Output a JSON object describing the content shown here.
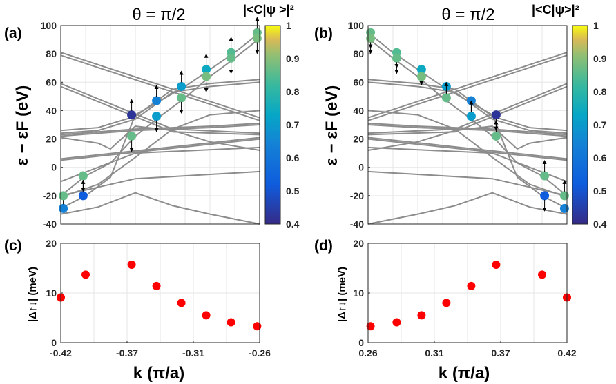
{
  "chart_data": [
    {
      "panel": "(a)",
      "type": "line",
      "title": "θ = π/2",
      "ylabel": "ε − εF (eV)",
      "ylim": [
        -40,
        100
      ],
      "xlim": [
        -0.42,
        -0.26
      ],
      "yticks": [
        "100",
        "80",
        "60",
        "40",
        "20",
        "0",
        "-20",
        "-40"
      ],
      "grid": true,
      "colorbar": {
        "label": "|<C|ψ >|²",
        "range": [
          0.4,
          1
        ],
        "ticks": [
          "1",
          "0.9",
          "0.8",
          "0.7",
          "0.6",
          "0.5",
          "0.4"
        ]
      },
      "bands": [
        [
          [
            -0.42,
            81
          ],
          [
            -0.26,
            35
          ]
        ],
        [
          [
            -0.42,
            79
          ],
          [
            -0.26,
            33
          ]
        ],
        [
          [
            -0.42,
            59
          ],
          [
            -0.33,
            27
          ],
          [
            -0.26,
            24
          ]
        ],
        [
          [
            -0.42,
            57
          ],
          [
            -0.33,
            25
          ],
          [
            -0.26,
            23
          ]
        ],
        [
          [
            -0.42,
            26
          ],
          [
            -0.39,
            28
          ],
          [
            -0.36,
            36
          ],
          [
            -0.33,
            55
          ],
          [
            -0.3,
            59
          ],
          [
            -0.26,
            62
          ]
        ],
        [
          [
            -0.42,
            24
          ],
          [
            -0.39,
            26
          ],
          [
            -0.36,
            34
          ],
          [
            -0.33,
            53
          ],
          [
            -0.3,
            57
          ],
          [
            -0.26,
            60
          ]
        ],
        [
          [
            -0.42,
            23
          ],
          [
            -0.36,
            27
          ],
          [
            -0.33,
            28
          ],
          [
            -0.3,
            29
          ],
          [
            -0.26,
            31
          ]
        ],
        [
          [
            -0.42,
            22
          ],
          [
            -0.36,
            26
          ],
          [
            -0.33,
            27
          ],
          [
            -0.3,
            28
          ],
          [
            -0.26,
            30
          ]
        ],
        [
          [
            -0.42,
            6
          ],
          [
            -0.26,
            21
          ]
        ],
        [
          [
            -0.42,
            5
          ],
          [
            -0.26,
            20
          ]
        ],
        [
          [
            -0.42,
            21
          ],
          [
            -0.39,
            17
          ],
          [
            -0.38,
            13
          ],
          [
            -0.36,
            29
          ],
          [
            -0.33,
            26
          ],
          [
            -0.3,
            18
          ],
          [
            -0.26,
            12
          ]
        ],
        [
          [
            -0.42,
            -21
          ],
          [
            -0.39,
            -12
          ],
          [
            -0.36,
            7
          ],
          [
            -0.33,
            27
          ],
          [
            -0.3,
            37
          ],
          [
            -0.26,
            40
          ]
        ],
        [
          [
            -0.42,
            -10
          ],
          [
            -0.36,
            10
          ],
          [
            -0.26,
            14
          ]
        ],
        [
          [
            -0.42,
            -20
          ],
          [
            -0.36,
            -8
          ],
          [
            -0.26,
            -3
          ]
        ],
        [
          [
            -0.42,
            -33
          ],
          [
            -0.39,
            -28
          ],
          [
            -0.36,
            -18
          ],
          [
            -0.33,
            -27
          ],
          [
            -0.3,
            -33
          ],
          [
            -0.26,
            -40
          ]
        ],
        [
          [
            -0.42,
            -29
          ],
          [
            -0.4,
            -20
          ],
          [
            -0.38,
            -7
          ],
          [
            -0.36,
            37
          ],
          [
            -0.34,
            47
          ],
          [
            -0.32,
            57
          ],
          [
            -0.3,
            69
          ],
          [
            -0.28,
            81
          ],
          [
            -0.26,
            95
          ]
        ],
        [
          [
            -0.42,
            -20
          ],
          [
            -0.4,
            -6
          ],
          [
            -0.38,
            3
          ],
          [
            -0.36,
            22
          ],
          [
            -0.34,
            36
          ],
          [
            -0.32,
            49
          ],
          [
            -0.3,
            64
          ],
          [
            -0.28,
            77
          ],
          [
            -0.26,
            91
          ]
        ]
      ],
      "points": [
        {
          "k": -0.418,
          "e": -29,
          "c": 0.6,
          "arrow": "up"
        },
        {
          "k": -0.418,
          "e": -20,
          "c": 0.8,
          "arrow": "none"
        },
        {
          "k": -0.402,
          "e": -20,
          "c": 0.5,
          "arrow": "up"
        },
        {
          "k": -0.402,
          "e": -6,
          "c": 0.8,
          "arrow": "down"
        },
        {
          "k": -0.363,
          "e": 37,
          "c": 0.42,
          "arrow": "up"
        },
        {
          "k": -0.363,
          "e": 22,
          "c": 0.8,
          "arrow": "down"
        },
        {
          "k": -0.343,
          "e": 47,
          "c": 0.6,
          "arrow": "up"
        },
        {
          "k": -0.343,
          "e": 36,
          "c": 0.65,
          "arrow": "down"
        },
        {
          "k": -0.323,
          "e": 57,
          "c": 0.65,
          "arrow": "up"
        },
        {
          "k": -0.323,
          "e": 49,
          "c": 0.8,
          "arrow": "down"
        },
        {
          "k": -0.303,
          "e": 69,
          "c": 0.68,
          "arrow": "up"
        },
        {
          "k": -0.303,
          "e": 64,
          "c": 0.82,
          "arrow": "down"
        },
        {
          "k": -0.283,
          "e": 81,
          "c": 0.78,
          "arrow": "up"
        },
        {
          "k": -0.283,
          "e": 77,
          "c": 0.8,
          "arrow": "down"
        },
        {
          "k": -0.262,
          "e": 95,
          "c": 0.8,
          "arrow": "up"
        },
        {
          "k": -0.262,
          "e": 91,
          "c": 0.82,
          "arrow": "down"
        }
      ]
    },
    {
      "panel": "(b)",
      "type": "line",
      "title": "θ = π/2",
      "ylabel": "ε − εF (eV)",
      "ylim": [
        -40,
        100
      ],
      "xlim": [
        0.26,
        0.42
      ],
      "yticks": [
        "100",
        "80",
        "60",
        "40",
        "20",
        "0",
        "-20",
        "-40"
      ],
      "grid": true,
      "colorbar": {
        "label": "|<C|ψ>|²",
        "range": [
          0.4,
          1
        ],
        "ticks": [
          "1",
          "0.9",
          "0.8",
          "0.7",
          "0.6",
          "0.5",
          "0.4"
        ]
      },
      "mirror_of": "(a)",
      "points": [
        {
          "k": 0.262,
          "e": 95,
          "c": 0.8,
          "arrow": "down"
        },
        {
          "k": 0.262,
          "e": 91,
          "c": 0.82,
          "arrow": "down"
        },
        {
          "k": 0.283,
          "e": 81,
          "c": 0.78,
          "arrow": "down"
        },
        {
          "k": 0.283,
          "e": 77,
          "c": 0.8,
          "arrow": "down"
        },
        {
          "k": 0.303,
          "e": 69,
          "c": 0.68,
          "arrow": "down"
        },
        {
          "k": 0.303,
          "e": 64,
          "c": 0.82,
          "arrow": "none"
        },
        {
          "k": 0.323,
          "e": 57,
          "c": 0.65,
          "arrow": "down"
        },
        {
          "k": 0.323,
          "e": 49,
          "c": 0.8,
          "arrow": "up"
        },
        {
          "k": 0.343,
          "e": 47,
          "c": 0.6,
          "arrow": "down"
        },
        {
          "k": 0.343,
          "e": 36,
          "c": 0.65,
          "arrow": "up"
        },
        {
          "k": 0.363,
          "e": 37,
          "c": 0.42,
          "arrow": "down"
        },
        {
          "k": 0.363,
          "e": 22,
          "c": 0.8,
          "arrow": "up"
        },
        {
          "k": 0.402,
          "e": -6,
          "c": 0.8,
          "arrow": "up"
        },
        {
          "k": 0.402,
          "e": -20,
          "c": 0.5,
          "arrow": "down"
        },
        {
          "k": 0.418,
          "e": -20,
          "c": 0.8,
          "arrow": "up"
        },
        {
          "k": 0.418,
          "e": -29,
          "c": 0.6,
          "arrow": "none"
        }
      ]
    },
    {
      "panel": "(c)",
      "type": "scatter",
      "ylabel": "|Δ↑↓| (meV)",
      "xlabel": "k (π/a)",
      "ylim": [
        0,
        20
      ],
      "xlim": [
        -0.42,
        -0.26
      ],
      "yticks": [
        "20",
        "10",
        "0"
      ],
      "xticks": [
        "-0.42",
        "-0.37",
        "-0.31",
        "-0.26"
      ],
      "x": [
        -0.42,
        -0.4,
        -0.363,
        -0.343,
        -0.323,
        -0.303,
        -0.283,
        -0.262
      ],
      "y": [
        9.1,
        13.7,
        15.7,
        11.4,
        8.0,
        5.5,
        4.1,
        3.3
      ],
      "color": "#ff0000"
    },
    {
      "panel": "(d)",
      "type": "scatter",
      "ylabel": "|Δ↑↓| (meV)",
      "xlabel": "k (π/a)",
      "ylim": [
        0,
        20
      ],
      "xlim": [
        0.26,
        0.42
      ],
      "yticks": [
        "20",
        "10",
        "0"
      ],
      "xticks": [
        "0.26",
        "0.31",
        "0.37",
        "0.42"
      ],
      "x": [
        0.262,
        0.283,
        0.303,
        0.323,
        0.343,
        0.363,
        0.4,
        0.42
      ],
      "y": [
        3.3,
        4.1,
        5.5,
        8.0,
        11.4,
        15.7,
        13.7,
        9.1
      ],
      "color": "#ff0000"
    }
  ]
}
